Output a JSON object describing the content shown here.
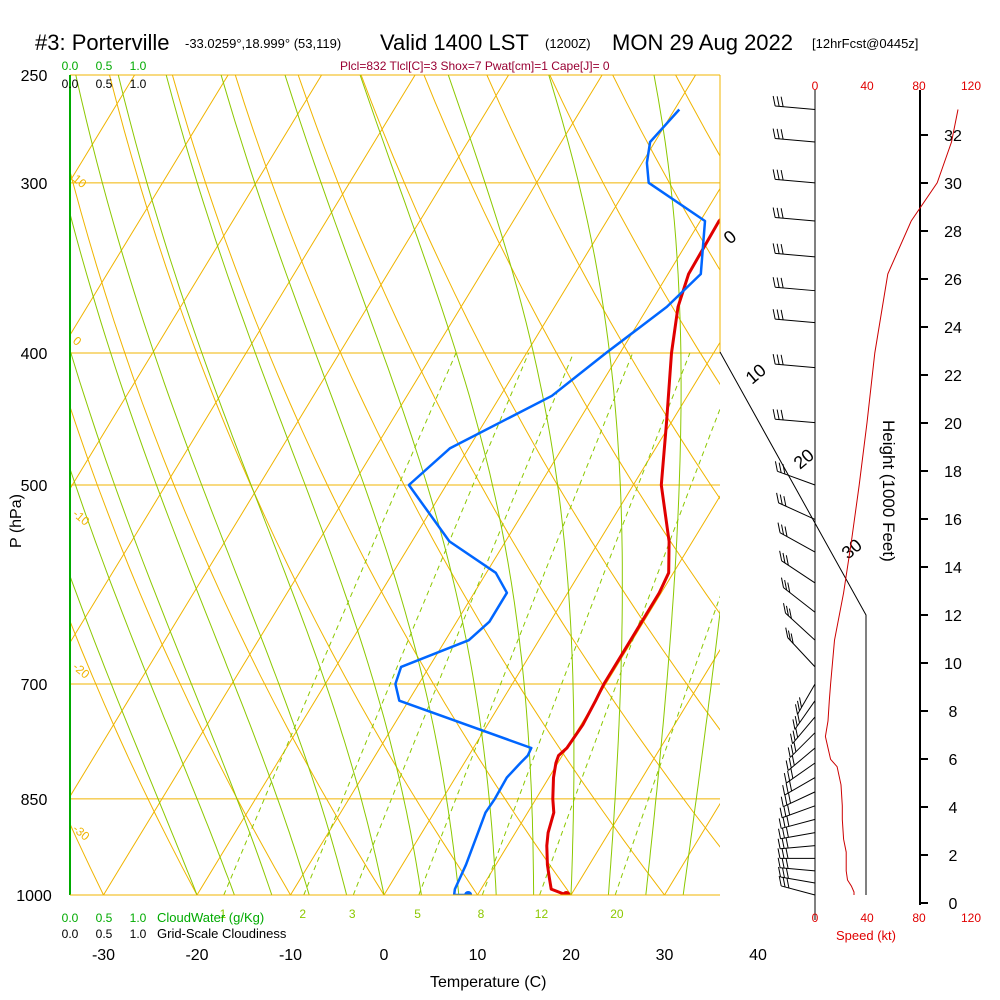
{
  "header": {
    "station": "#3: Porterville",
    "coords": "-33.0259°,18.999° (53,119)",
    "valid": "Valid 1400 LST",
    "utc": "(1200Z)",
    "date": "MON 29 Aug 2022",
    "forecast": "[12hrFcst@0445z]",
    "indices": "Plcl=832 Tlcl[C]=3 Shox=7 Pwat[cm]=1 Cape[J]= 0"
  },
  "colors": {
    "isobar": "#f0b400",
    "dry_adiabat": "#f0b400",
    "moist_adiabat": "#8cc800",
    "mixing_ratio": "#8cc800",
    "temperature": "#e00000",
    "dewpoint": "#0066ff",
    "height_profile": "#cc0000",
    "cloudwater": "#00aa00",
    "indices_text": "#990033"
  },
  "chart_data": {
    "type": "line",
    "title": "#3: Porterville -33.0259°,18.999° (53,119) Valid 1400 LST (1200Z) MON 29 Aug 2022 [12hrFcst@0445z]",
    "xlabel": "Temperature (C)",
    "ylabel": "P (hPa)",
    "x_ticks": [
      "-30",
      "-20",
      "-10",
      "0",
      "10",
      "20",
      "30",
      "40"
    ],
    "y_ticks": [
      "250",
      "300",
      "400",
      "500",
      "700",
      "850",
      "1000"
    ],
    "xlim": [
      -34,
      36
    ],
    "ylim": [
      1000,
      250
    ],
    "height_axis": {
      "label": "Height (1000 Feet)",
      "ticks": [
        "0",
        "2",
        "4",
        "6",
        "8",
        "10",
        "12",
        "14",
        "16",
        "18",
        "20",
        "22",
        "24",
        "26",
        "28",
        "30",
        "32"
      ]
    },
    "speed_axis": {
      "label": "Speed (kt)",
      "ticks": [
        "0",
        "40",
        "80",
        "120"
      ]
    },
    "cloudwater_axis": {
      "label": "CloudWater (g/Kg)",
      "ticks": [
        "0.0",
        "0.5",
        "1.0"
      ]
    },
    "cloudiness_axis": {
      "label": "Grid-Scale Cloudiness",
      "ticks": [
        "0.0",
        "0.5",
        "1.0"
      ]
    },
    "dry_adiabat_labels": [
      "10",
      "0",
      "-10",
      "-20",
      "-30"
    ],
    "moist_adiabat_labels": [
      "0",
      "10",
      "20",
      "30"
    ],
    "mixing_ratio_labels": [
      "1",
      "2",
      "3",
      "5",
      "8",
      "12",
      "20"
    ],
    "series": [
      {
        "name": "Temperature",
        "points": [
          [
            1000,
            19.5
          ],
          [
            990,
            17.5
          ],
          [
            970,
            16.5
          ],
          [
            950,
            15.5
          ],
          [
            920,
            14.2
          ],
          [
            900,
            13.5
          ],
          [
            870,
            12.8
          ],
          [
            850,
            11.8
          ],
          [
            820,
            10.5
          ],
          [
            800,
            9.8
          ],
          [
            790,
            9.6
          ],
          [
            780,
            10.0
          ],
          [
            750,
            10.2
          ],
          [
            720,
            10.0
          ],
          [
            700,
            9.8
          ],
          [
            650,
            9.8
          ],
          [
            600,
            9.8
          ],
          [
            580,
            9.5
          ],
          [
            550,
            7.5
          ],
          [
            500,
            3.0
          ],
          [
            450,
            -0.5
          ],
          [
            400,
            -4.5
          ],
          [
            370,
            -6.8
          ],
          [
            350,
            -7.8
          ],
          [
            320,
            -8.0
          ],
          [
            300,
            -6.5
          ],
          [
            280,
            -3.5
          ],
          [
            265,
            -2.0
          ]
        ]
      },
      {
        "name": "Dewpoint",
        "points": [
          [
            1000,
            9.0
          ],
          [
            1000,
            7.5
          ],
          [
            990,
            7.2
          ],
          [
            950,
            6.8
          ],
          [
            900,
            6.0
          ],
          [
            870,
            5.5
          ],
          [
            850,
            5.6
          ],
          [
            820,
            5.5
          ],
          [
            800,
            6.0
          ],
          [
            790,
            6.3
          ],
          [
            780,
            6.2
          ],
          [
            720,
            -11.0
          ],
          [
            700,
            -12.5
          ],
          [
            680,
            -13.0
          ],
          [
            650,
            -7.5
          ],
          [
            630,
            -6.5
          ],
          [
            600,
            -6.5
          ],
          [
            580,
            -9.0
          ],
          [
            550,
            -16.0
          ],
          [
            500,
            -24.0
          ],
          [
            470,
            -22.0
          ],
          [
            430,
            -14.5
          ],
          [
            400,
            -11.5
          ],
          [
            370,
            -8.0
          ],
          [
            350,
            -6.5
          ],
          [
            320,
            -9.5
          ],
          [
            300,
            -18.0
          ],
          [
            290,
            -19.5
          ],
          [
            280,
            -20.5
          ],
          [
            265,
            -19.5
          ]
        ]
      },
      {
        "name": "Height",
        "points": [
          [
            1000,
            30
          ],
          [
            995,
            30
          ],
          [
            985,
            28
          ],
          [
            975,
            25
          ],
          [
            960,
            24
          ],
          [
            930,
            24
          ],
          [
            910,
            22
          ],
          [
            880,
            21
          ],
          [
            860,
            21
          ],
          [
            830,
            20
          ],
          [
            805,
            17
          ],
          [
            795,
            12
          ],
          [
            780,
            10
          ],
          [
            765,
            8
          ],
          [
            745,
            10
          ],
          [
            720,
            11
          ],
          [
            700,
            12
          ],
          [
            650,
            15
          ],
          [
            600,
            22
          ],
          [
            550,
            28
          ],
          [
            500,
            34
          ],
          [
            450,
            40
          ],
          [
            400,
            46
          ],
          [
            350,
            56
          ],
          [
            320,
            74
          ],
          [
            300,
            94
          ],
          [
            280,
            105
          ],
          [
            265,
            110
          ]
        ]
      }
    ],
    "surface_points": [
      {
        "name": "Temperature",
        "pressure": 1000,
        "value": 19.5
      },
      {
        "name": "Dewpoint",
        "pressure": 1000,
        "value": 9.0
      }
    ]
  }
}
